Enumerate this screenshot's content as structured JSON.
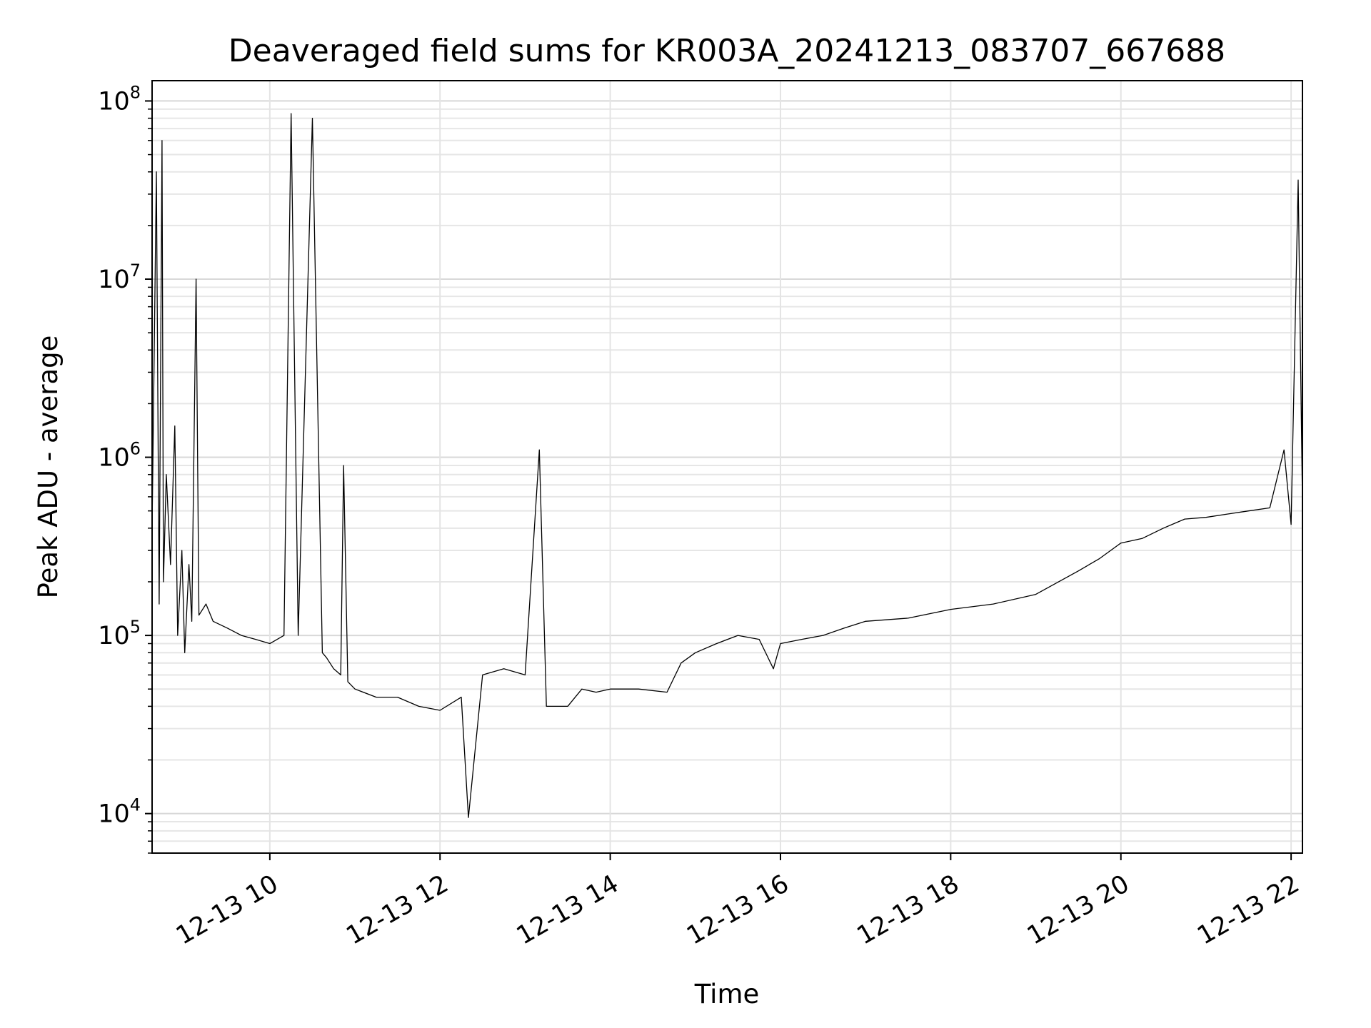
{
  "chart_data": {
    "type": "line",
    "title": "Deaveraged field sums for KR003A_20241213_083707_667688",
    "xlabel": "Time",
    "ylabel": "Peak ADU - average",
    "yscale": "log",
    "xlim": [
      "12-13 08:37",
      "12-13 22:08"
    ],
    "ylim": [
      6000,
      130000000
    ],
    "xticks": [
      "12-13 10",
      "12-13 12",
      "12-13 14",
      "12-13 16",
      "12-13 18",
      "12-13 20",
      "12-13 22"
    ],
    "yticks": [
      {
        "base": "10",
        "exp": "4",
        "value": 10000
      },
      {
        "base": "10",
        "exp": "5",
        "value": 100000
      },
      {
        "base": "10",
        "exp": "6",
        "value": 1000000
      },
      {
        "base": "10",
        "exp": "7",
        "value": 10000000
      },
      {
        "base": "10",
        "exp": "8",
        "value": 100000000
      }
    ],
    "grid": true,
    "line_color": "#000000",
    "series": [
      {
        "x": [
          "12-13 08:37",
          "12-13 08:40",
          "12-13 08:42",
          "12-13 08:44",
          "12-13 08:45",
          "12-13 08:47",
          "12-13 08:50",
          "12-13 08:53",
          "12-13 08:55",
          "12-13 08:58",
          "12-13 09:00",
          "12-13 09:03",
          "12-13 09:05",
          "12-13 09:08",
          "12-13 09:10",
          "12-13 09:15",
          "12-13 09:20",
          "12-13 09:30",
          "12-13 09:40",
          "12-13 09:50",
          "12-13 10:00",
          "12-13 10:10",
          "12-13 10:15",
          "12-13 10:20",
          "12-13 10:30",
          "12-13 10:37",
          "12-13 10:40",
          "12-13 10:45",
          "12-13 10:50",
          "12-13 10:52",
          "12-13 10:55",
          "12-13 11:00",
          "12-13 11:15",
          "12-13 11:30",
          "12-13 11:45",
          "12-13 12:00",
          "12-13 12:15",
          "12-13 12:20",
          "12-13 12:30",
          "12-13 12:45",
          "12-13 13:00",
          "12-13 13:10",
          "12-13 13:15",
          "12-13 13:30",
          "12-13 13:40",
          "12-13 13:50",
          "12-13 14:00",
          "12-13 14:20",
          "12-13 14:40",
          "12-13 14:50",
          "12-13 15:00",
          "12-13 15:15",
          "12-13 15:30",
          "12-13 15:45",
          "12-13 15:55",
          "12-13 16:00",
          "12-13 16:15",
          "12-13 16:30",
          "12-13 16:45",
          "12-13 17:00",
          "12-13 17:30",
          "12-13 18:00",
          "12-13 18:30",
          "12-13 19:00",
          "12-13 19:30",
          "12-13 19:45",
          "12-13 20:00",
          "12-13 20:15",
          "12-13 20:30",
          "12-13 20:45",
          "12-13 21:00",
          "12-13 21:15",
          "12-13 21:30",
          "12-13 21:45",
          "12-13 21:55",
          "12-13 22:00",
          "12-13 22:05",
          "12-13 22:08"
        ],
        "y": [
          400000,
          40000000,
          150000,
          60000000,
          200000,
          800000,
          250000,
          1500000,
          100000,
          300000,
          80000,
          250000,
          120000,
          10000000,
          130000,
          150000,
          120000,
          110000,
          100000,
          95000,
          90000,
          100000,
          85000000,
          100000,
          80000000,
          80000,
          75000,
          65000,
          60000,
          900000,
          55000,
          50000,
          45000,
          45000,
          40000,
          38000,
          45000,
          9500,
          60000,
          65000,
          60000,
          1100000,
          40000,
          40000,
          50000,
          48000,
          50000,
          50000,
          48000,
          70000,
          80000,
          90000,
          100000,
          95000,
          65000,
          90000,
          95000,
          100000,
          110000,
          120000,
          125000,
          140000,
          150000,
          170000,
          230000,
          270000,
          330000,
          350000,
          400000,
          450000,
          460000,
          480000,
          500000,
          520000,
          1100000,
          420000,
          36000000,
          550000
        ]
      }
    ]
  }
}
